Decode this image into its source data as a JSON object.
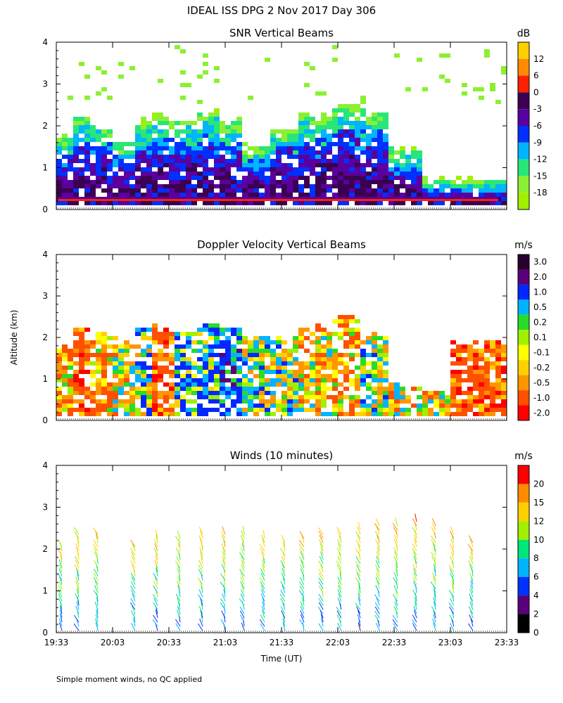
{
  "title": "IDEAL ISS DPG    2 Nov 2017 Day 306",
  "shared_axes": {
    "ylabel": "Altitude (km)",
    "xlabel": "Time (UT)",
    "x_ticks": [
      "19:33",
      "20:03",
      "20:33",
      "21:03",
      "21:33",
      "22:03",
      "22:33",
      "23:03",
      "23:33"
    ],
    "y_ticks": [
      "0",
      "1",
      "2",
      "3",
      "4"
    ]
  },
  "footnote": "Simple moment winds, no QC applied",
  "chart_data": [
    {
      "type": "heatmap",
      "title": "SNR Vertical Beams",
      "colorbar_unit": "dB",
      "colorbar_labels": [
        "12",
        "6",
        "0",
        "-3",
        "-6",
        "-9",
        "-12",
        "-15",
        "-18"
      ],
      "colorbar_colors": [
        "#ffd000",
        "#ff8c00",
        "#ff2000",
        "#3c0050",
        "#5a00a0",
        "#0030ff",
        "#00b4ff",
        "#28e678",
        "#8cf032",
        "#a0f000"
      ],
      "xlim": [
        "19:33",
        "23:33"
      ],
      "ylim": [
        0,
        4
      ],
      "grid": false,
      "x_range_hours": [
        19.55,
        23.55
      ],
      "columns": [
        {
          "t": 19.6,
          "top": 1.7,
          "core": 0.9
        },
        {
          "t": 19.75,
          "top": 2.2,
          "core": 1.5
        },
        {
          "t": 19.9,
          "top": 2.0,
          "core": 1.4
        },
        {
          "t": 20.1,
          "top": 1.6,
          "core": 0.8
        },
        {
          "t": 20.3,
          "top": 2.1,
          "core": 1.1
        },
        {
          "t": 20.5,
          "top": 2.2,
          "core": 1.0
        },
        {
          "t": 20.7,
          "top": 2.1,
          "core": 1.0
        },
        {
          "t": 20.9,
          "top": 2.3,
          "core": 1.4
        },
        {
          "t": 21.05,
          "top": 2.1,
          "core": 1.3
        },
        {
          "t": 21.3,
          "top": 1.5,
          "core": 0.6
        },
        {
          "t": 21.55,
          "top": 1.9,
          "core": 1.6
        },
        {
          "t": 21.8,
          "top": 2.2,
          "core": 1.5
        },
        {
          "t": 22.1,
          "top": 2.5,
          "core": 2.0
        },
        {
          "t": 22.35,
          "top": 2.3,
          "core": 1.6
        },
        {
          "t": 22.6,
          "top": 1.4,
          "core": 0.7
        },
        {
          "t": 22.9,
          "top": 0.7,
          "core": 0.5
        },
        {
          "t": 23.2,
          "top": 0.7,
          "core": 0.5
        }
      ]
    },
    {
      "type": "heatmap",
      "title": "Doppler Velocity Vertical Beams",
      "colorbar_unit": "m/s",
      "colorbar_labels": [
        "3.0",
        "2.0",
        "1.0",
        "0.5",
        "0.2",
        "0.1",
        "-0.1",
        "-0.2",
        "-0.5",
        "-1.0",
        "-2.0"
      ],
      "colorbar_colors": [
        "#28002d",
        "#5a0078",
        "#0028ff",
        "#00b4ff",
        "#28dc28",
        "#a0f000",
        "#ffff00",
        "#ffd000",
        "#ff9600",
        "#ff5000",
        "#ff0000"
      ],
      "xlim": [
        "19:33",
        "23:33"
      ],
      "ylim": [
        0,
        4
      ],
      "grid": false,
      "columns": [
        {
          "t": 19.6,
          "top": 1.8,
          "mean": -0.5
        },
        {
          "t": 19.75,
          "top": 2.2,
          "mean": -1.0
        },
        {
          "t": 19.9,
          "top": 2.1,
          "mean": -0.5
        },
        {
          "t": 20.1,
          "top": 1.9,
          "mean": -0.1
        },
        {
          "t": 20.3,
          "top": 2.2,
          "mean": 0.2
        },
        {
          "t": 20.5,
          "top": 2.2,
          "mean": -1.0
        },
        {
          "t": 20.7,
          "top": 2.1,
          "mean": 0.5
        },
        {
          "t": 20.9,
          "top": 2.3,
          "mean": 0.5
        },
        {
          "t": 21.05,
          "top": 2.2,
          "mean": 1.0
        },
        {
          "t": 21.3,
          "top": 2.0,
          "mean": 0.2
        },
        {
          "t": 21.55,
          "top": 1.9,
          "mean": 0.1
        },
        {
          "t": 21.8,
          "top": 2.2,
          "mean": -0.2
        },
        {
          "t": 22.1,
          "top": 2.5,
          "mean": -0.5
        },
        {
          "t": 22.35,
          "top": 2.1,
          "mean": 0.1
        },
        {
          "t": 22.6,
          "top": 0.8,
          "mean": -0.1
        },
        {
          "t": 22.9,
          "top": 0.7,
          "mean": -0.1
        },
        {
          "t": 23.2,
          "top": 1.9,
          "mean": -1.0
        }
      ]
    },
    {
      "type": "scatter",
      "title": "Winds (10 minutes)",
      "colorbar_unit": "m/s",
      "colorbar_labels": [
        "20",
        "15",
        "12",
        "10",
        "8",
        "6",
        "4",
        "2",
        "0"
      ],
      "colorbar_colors": [
        "#ff0000",
        "#ff8c00",
        "#ffd000",
        "#a0f000",
        "#00e678",
        "#00b4ff",
        "#0032ff",
        "#5a0078",
        "#000000"
      ],
      "xlim": [
        "19:33",
        "23:33"
      ],
      "ylim": [
        0,
        4
      ],
      "grid": false,
      "profiles": [
        {
          "t": 19.6,
          "top": 2.1
        },
        {
          "t": 19.75,
          "top": 2.4
        },
        {
          "t": 19.92,
          "top": 2.4
        },
        {
          "t": 20.25,
          "top": 2.1
        },
        {
          "t": 20.45,
          "top": 2.3
        },
        {
          "t": 20.65,
          "top": 2.3
        },
        {
          "t": 20.85,
          "top": 2.4
        },
        {
          "t": 21.05,
          "top": 2.4
        },
        {
          "t": 21.22,
          "top": 2.4
        },
        {
          "t": 21.4,
          "top": 2.3
        },
        {
          "t": 21.58,
          "top": 2.2
        },
        {
          "t": 21.75,
          "top": 2.3
        },
        {
          "t": 21.92,
          "top": 2.4
        },
        {
          "t": 22.08,
          "top": 2.4
        },
        {
          "t": 22.25,
          "top": 2.5
        },
        {
          "t": 22.42,
          "top": 2.6
        },
        {
          "t": 22.58,
          "top": 2.6
        },
        {
          "t": 22.75,
          "top": 2.7
        },
        {
          "t": 22.92,
          "top": 2.6
        },
        {
          "t": 23.08,
          "top": 2.4
        },
        {
          "t": 23.25,
          "top": 2.2
        }
      ]
    }
  ]
}
